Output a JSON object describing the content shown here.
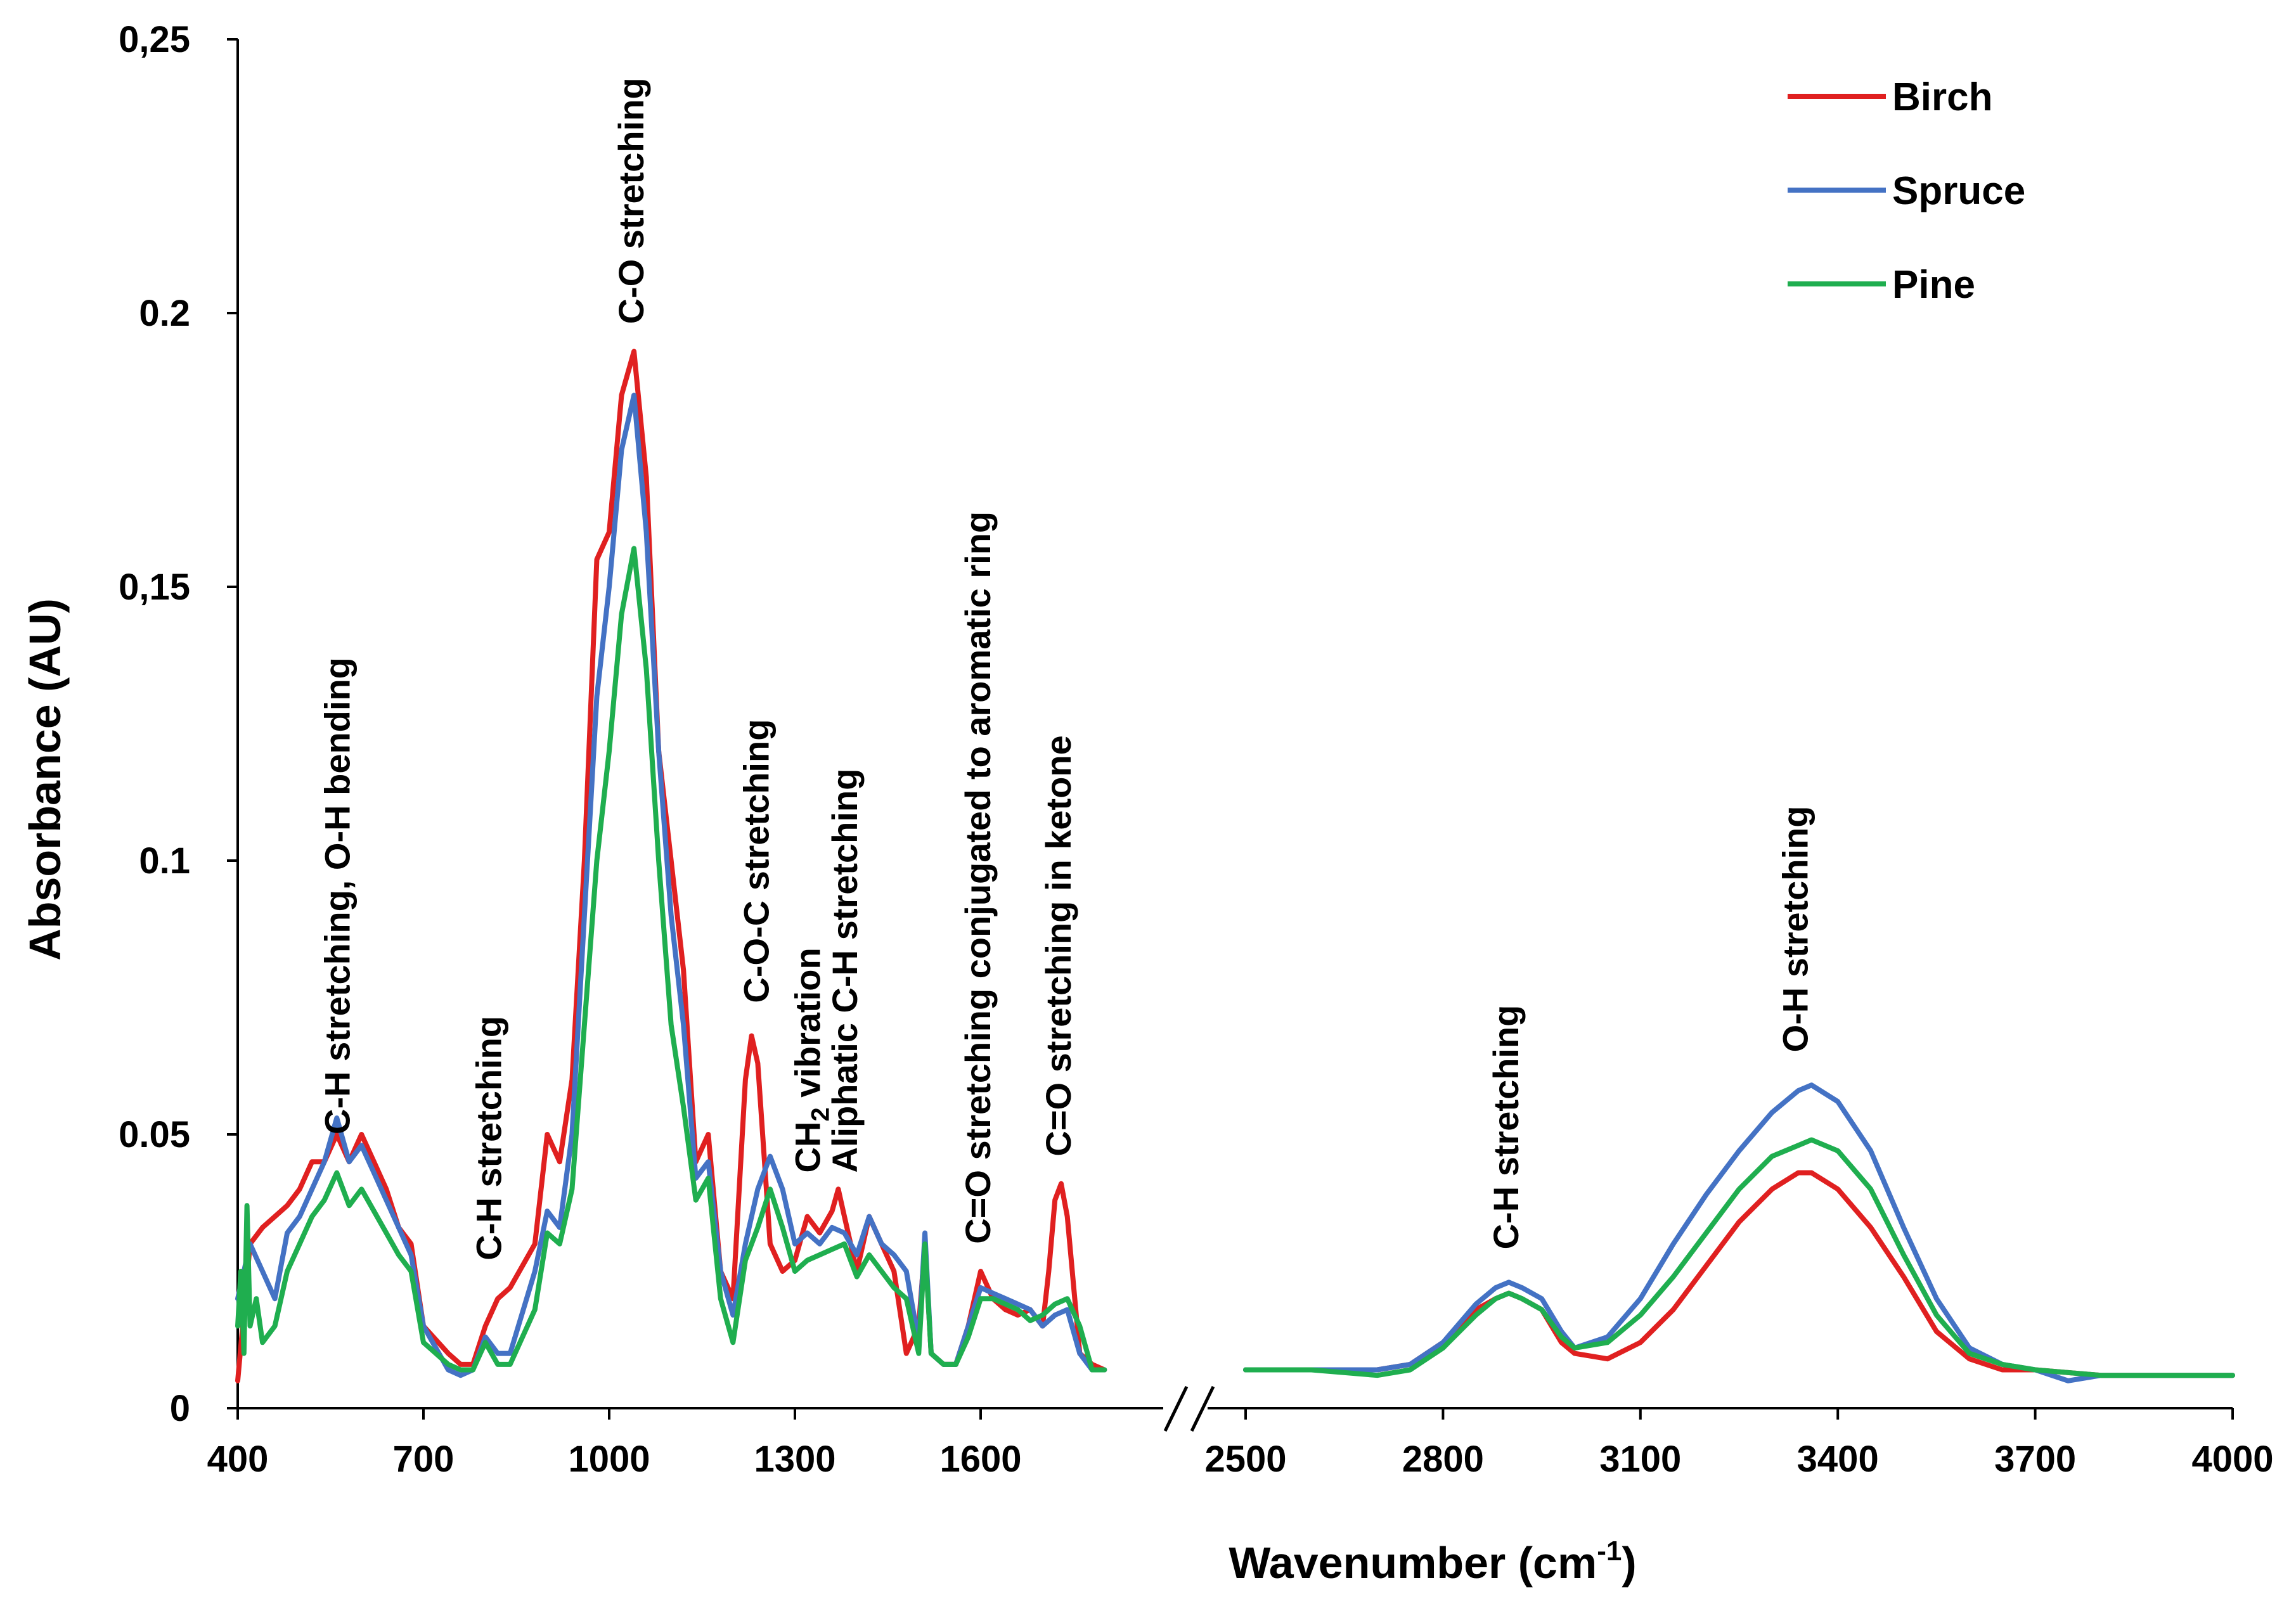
{
  "chart_data": {
    "type": "line",
    "title": "",
    "xlabel": "Wavenumber (cm",
    "xlabel_sup": "-1",
    "xlabel_suffix": ")",
    "ylabel": "Absorbance (AU)",
    "ylim": [
      0,
      0.25
    ],
    "y_ticks": [
      {
        "value": 0,
        "label": "0"
      },
      {
        "value": 0.05,
        "label": "0.05"
      },
      {
        "value": 0.1,
        "label": "0.1"
      },
      {
        "value": 0.15,
        "label": "0,15"
      },
      {
        "value": 0.2,
        "label": "0.2"
      },
      {
        "value": 0.25,
        "label": "0,25"
      }
    ],
    "x_segments": [
      {
        "range": [
          400,
          1900
        ],
        "ticks": [
          400,
          700,
          1000,
          1300,
          1600
        ]
      },
      {
        "range": [
          2500,
          4000
        ],
        "ticks": [
          2500,
          2800,
          3100,
          3400,
          3700,
          4000
        ]
      }
    ],
    "x_tick_labels": [
      "400",
      "700",
      "1000",
      "1300",
      "1600",
      "2500",
      "2800",
      "3100",
      "3400",
      "3700",
      "4000"
    ],
    "axis_break": true,
    "legend_position": "top-right",
    "colors": {
      "Birch": "#e02020",
      "Spruce": "#4472c4",
      "Pine": "#1fae4f"
    },
    "series": [
      {
        "name": "Birch",
        "color": "#e02020",
        "x": [
          400,
          420,
          440,
          460,
          480,
          500,
          520,
          540,
          560,
          580,
          600,
          620,
          640,
          660,
          680,
          700,
          740,
          760,
          780,
          800,
          820,
          840,
          880,
          900,
          920,
          940,
          960,
          980,
          1000,
          1020,
          1040,
          1060,
          1080,
          1100,
          1120,
          1140,
          1160,
          1180,
          1200,
          1210,
          1220,
          1230,
          1240,
          1260,
          1280,
          1300,
          1320,
          1340,
          1360,
          1370,
          1380,
          1400,
          1420,
          1440,
          1460,
          1480,
          1500,
          1510,
          1520,
          1540,
          1560,
          1580,
          1600,
          1620,
          1640,
          1660,
          1680,
          1700,
          1710,
          1720,
          1730,
          1740,
          1760,
          1780,
          1800,
          2500,
          2600,
          2700,
          2750,
          2800,
          2850,
          2880,
          2900,
          2920,
          2950,
          2980,
          3000,
          3050,
          3100,
          3150,
          3200,
          3250,
          3300,
          3340,
          3360,
          3400,
          3450,
          3500,
          3550,
          3600,
          3650,
          3700,
          3800,
          3900,
          4000
        ],
        "y": [
          0.005,
          0.03,
          0.033,
          0.035,
          0.037,
          0.04,
          0.045,
          0.045,
          0.05,
          0.045,
          0.05,
          0.045,
          0.04,
          0.033,
          0.03,
          0.015,
          0.01,
          0.008,
          0.008,
          0.015,
          0.02,
          0.022,
          0.03,
          0.05,
          0.045,
          0.06,
          0.1,
          0.155,
          0.16,
          0.185,
          0.193,
          0.17,
          0.12,
          0.1,
          0.08,
          0.045,
          0.05,
          0.025,
          0.02,
          0.04,
          0.06,
          0.068,
          0.063,
          0.03,
          0.025,
          0.027,
          0.035,
          0.032,
          0.036,
          0.04,
          0.035,
          0.025,
          0.035,
          0.03,
          0.025,
          0.01,
          0.015,
          0.03,
          0.01,
          0.008,
          0.008,
          0.015,
          0.025,
          0.02,
          0.018,
          0.017,
          0.018,
          0.015,
          0.025,
          0.038,
          0.041,
          0.035,
          0.01,
          0.008,
          0.007,
          0.007,
          0.007,
          0.007,
          0.008,
          0.012,
          0.018,
          0.02,
          0.021,
          0.02,
          0.018,
          0.012,
          0.01,
          0.009,
          0.012,
          0.018,
          0.026,
          0.034,
          0.04,
          0.043,
          0.043,
          0.04,
          0.033,
          0.024,
          0.014,
          0.009,
          0.007,
          0.007,
          0.006,
          0.006,
          0.006
        ]
      },
      {
        "name": "Spruce",
        "color": "#4472c4",
        "x": [
          400,
          420,
          440,
          460,
          480,
          500,
          520,
          540,
          560,
          580,
          600,
          620,
          640,
          660,
          680,
          700,
          740,
          760,
          780,
          800,
          820,
          840,
          880,
          900,
          920,
          940,
          960,
          980,
          1000,
          1020,
          1040,
          1060,
          1080,
          1100,
          1120,
          1140,
          1160,
          1180,
          1200,
          1220,
          1240,
          1260,
          1280,
          1300,
          1320,
          1340,
          1360,
          1380,
          1400,
          1420,
          1440,
          1460,
          1480,
          1500,
          1510,
          1520,
          1540,
          1560,
          1580,
          1600,
          1620,
          1640,
          1660,
          1680,
          1700,
          1720,
          1740,
          1760,
          1780,
          1800,
          2500,
          2600,
          2700,
          2750,
          2800,
          2850,
          2880,
          2900,
          2920,
          2950,
          2980,
          3000,
          3050,
          3100,
          3150,
          3200,
          3250,
          3300,
          3340,
          3360,
          3400,
          3450,
          3500,
          3550,
          3600,
          3650,
          3700,
          3750,
          3800,
          3900,
          4000
        ],
        "y": [
          0.02,
          0.03,
          0.025,
          0.02,
          0.032,
          0.035,
          0.04,
          0.045,
          0.053,
          0.045,
          0.048,
          0.043,
          0.038,
          0.033,
          0.028,
          0.015,
          0.007,
          0.006,
          0.007,
          0.013,
          0.01,
          0.01,
          0.025,
          0.036,
          0.033,
          0.05,
          0.09,
          0.13,
          0.15,
          0.175,
          0.185,
          0.16,
          0.12,
          0.09,
          0.07,
          0.042,
          0.045,
          0.025,
          0.017,
          0.03,
          0.04,
          0.046,
          0.04,
          0.03,
          0.032,
          0.03,
          0.033,
          0.032,
          0.028,
          0.035,
          0.03,
          0.028,
          0.025,
          0.012,
          0.032,
          0.01,
          0.008,
          0.008,
          0.015,
          0.022,
          0.021,
          0.02,
          0.019,
          0.018,
          0.015,
          0.017,
          0.018,
          0.01,
          0.007,
          0.007,
          0.007,
          0.007,
          0.007,
          0.008,
          0.012,
          0.019,
          0.022,
          0.023,
          0.022,
          0.02,
          0.014,
          0.011,
          0.013,
          0.02,
          0.03,
          0.039,
          0.047,
          0.054,
          0.058,
          0.059,
          0.056,
          0.047,
          0.033,
          0.02,
          0.011,
          0.008,
          0.007,
          0.005,
          0.006,
          0.006,
          0.006
        ]
      },
      {
        "name": "Pine",
        "color": "#1fae4f",
        "x": [
          400,
          405,
          410,
          415,
          420,
          430,
          440,
          460,
          480,
          500,
          520,
          540,
          560,
          580,
          600,
          620,
          640,
          660,
          680,
          700,
          740,
          760,
          780,
          800,
          820,
          840,
          880,
          900,
          920,
          940,
          960,
          980,
          1000,
          1020,
          1040,
          1060,
          1080,
          1100,
          1120,
          1140,
          1160,
          1180,
          1200,
          1220,
          1240,
          1260,
          1280,
          1300,
          1320,
          1340,
          1360,
          1380,
          1400,
          1420,
          1440,
          1460,
          1480,
          1500,
          1510,
          1520,
          1540,
          1560,
          1580,
          1600,
          1620,
          1640,
          1660,
          1680,
          1700,
          1720,
          1740,
          1760,
          1780,
          1800,
          2500,
          2600,
          2700,
          2750,
          2800,
          2850,
          2880,
          2900,
          2920,
          2950,
          2980,
          3000,
          3050,
          3100,
          3150,
          3200,
          3250,
          3300,
          3340,
          3360,
          3400,
          3450,
          3500,
          3550,
          3600,
          3650,
          3700,
          3800,
          3900,
          4000
        ],
        "y": [
          0.015,
          0.025,
          0.01,
          0.037,
          0.015,
          0.02,
          0.012,
          0.015,
          0.025,
          0.03,
          0.035,
          0.038,
          0.043,
          0.037,
          0.04,
          0.036,
          0.032,
          0.028,
          0.025,
          0.012,
          0.008,
          0.007,
          0.007,
          0.012,
          0.008,
          0.008,
          0.018,
          0.032,
          0.03,
          0.04,
          0.07,
          0.1,
          0.12,
          0.145,
          0.157,
          0.135,
          0.1,
          0.07,
          0.055,
          0.038,
          0.042,
          0.02,
          0.012,
          0.027,
          0.033,
          0.04,
          0.033,
          0.025,
          0.027,
          0.028,
          0.029,
          0.03,
          0.024,
          0.028,
          0.025,
          0.022,
          0.02,
          0.01,
          0.03,
          0.01,
          0.008,
          0.008,
          0.013,
          0.02,
          0.02,
          0.019,
          0.018,
          0.016,
          0.017,
          0.019,
          0.02,
          0.015,
          0.007,
          0.007,
          0.007,
          0.007,
          0.006,
          0.007,
          0.011,
          0.017,
          0.02,
          0.021,
          0.02,
          0.018,
          0.013,
          0.011,
          0.012,
          0.017,
          0.024,
          0.032,
          0.04,
          0.046,
          0.048,
          0.049,
          0.047,
          0.04,
          0.028,
          0.017,
          0.01,
          0.008,
          0.007,
          0.006,
          0.006,
          0.006
        ]
      }
    ],
    "annotations": [
      {
        "id": "ch-oh-bend",
        "text": "C-H stretching, O-H bending",
        "x": 560,
        "y": 0.05
      },
      {
        "id": "ch-stretch-800",
        "text": "C-H stretching",
        "x": 805,
        "y": 0.027
      },
      {
        "id": "co-stretch",
        "text": "C-O stretching",
        "x": 1035,
        "y": 0.198
      },
      {
        "id": "coc-stretch",
        "text": "C-O-C stretching",
        "x": 1237,
        "y": 0.074
      },
      {
        "id": "ch2-vib",
        "text": "CH",
        "sub": "2",
        "suffix": " vibration",
        "x": 1320,
        "y": 0.043
      },
      {
        "id": "aliph-ch",
        "text": "Aliphatic C-H stretching",
        "x": 1380,
        "y": 0.043
      },
      {
        "id": "co-conj",
        "text": "C=O stretching conjugated to aromatic ring",
        "x": 1595,
        "y": 0.03
      },
      {
        "id": "co-ketone",
        "text": "C=O stretching in ketone",
        "x": 1725,
        "y": 0.046
      },
      {
        "id": "ch-stretch-2900",
        "text": "C-H stretching",
        "x": 2895,
        "y": 0.029
      },
      {
        "id": "oh-stretch",
        "text": "O-H stretching",
        "x": 3335,
        "y": 0.065
      }
    ]
  }
}
